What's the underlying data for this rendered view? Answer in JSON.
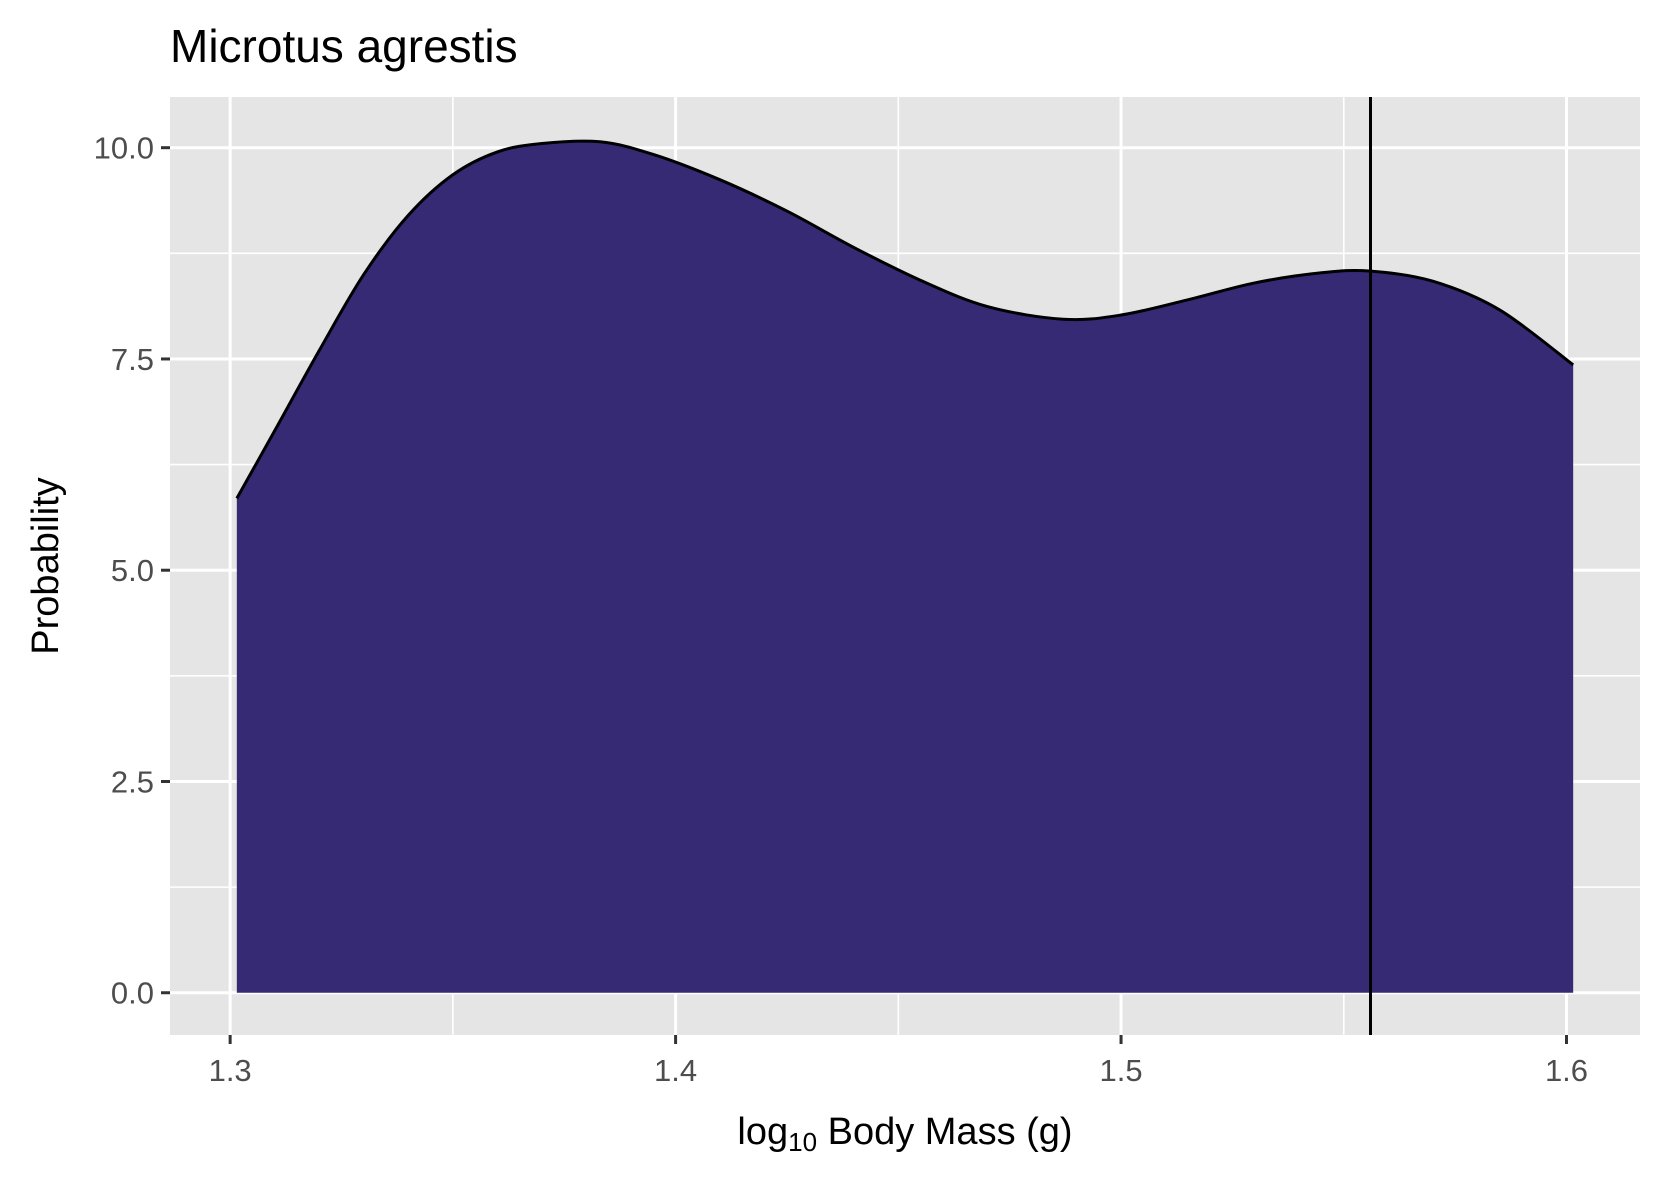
{
  "chart_data": {
    "type": "area",
    "title": "Microtus agrestis",
    "xlabel": {
      "prefix": "log",
      "subscript": "10",
      "suffix": " Body Mass (g)"
    },
    "ylabel": "Probability",
    "xlim": [
      1.2865,
      1.6165
    ],
    "ylim": [
      -0.5,
      10.6
    ],
    "x_ticks": [
      1.3,
      1.4,
      1.5,
      1.6
    ],
    "x_tick_labels": [
      "1.3",
      "1.4",
      "1.5",
      "1.6"
    ],
    "y_ticks": [
      0,
      2.5,
      5,
      7.5,
      10
    ],
    "y_tick_labels": [
      "0.0",
      "2.5",
      "5.0",
      "7.5",
      "10.0"
    ],
    "grid": true,
    "fill_color": "#372a75",
    "line_color": "#000000",
    "panel_color": "#e5e5e5",
    "series": [
      {
        "x": [
          1.3015,
          1.31,
          1.32,
          1.33,
          1.34,
          1.35,
          1.36,
          1.37,
          1.383,
          1.395,
          1.41,
          1.425,
          1.44,
          1.455,
          1.47,
          1.487,
          1.5,
          1.515,
          1.53,
          1.545,
          1.556,
          1.57,
          1.585,
          1.6015
        ],
        "y": [
          5.85,
          6.65,
          7.6,
          8.5,
          9.2,
          9.68,
          9.95,
          10.05,
          10.07,
          9.92,
          9.62,
          9.25,
          8.82,
          8.43,
          8.12,
          7.97,
          8.02,
          8.2,
          8.4,
          8.52,
          8.54,
          8.42,
          8.08,
          7.43
        ]
      }
    ],
    "vline_x": 1.556
  }
}
